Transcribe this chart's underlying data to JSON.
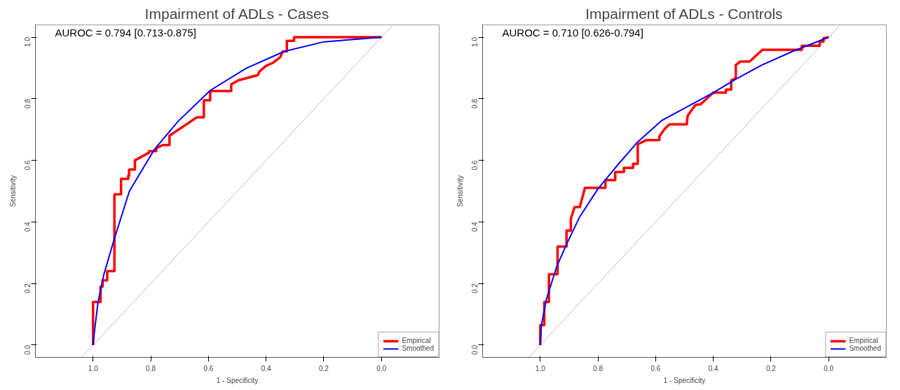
{
  "chart_data": [
    {
      "type": "line",
      "title": "Impairment of ADLs - Cases",
      "xlabel": "1 - Specificity",
      "ylabel": "Sensitivity",
      "annotations": [
        "AUROC = 0.794 [0.713-0.875]"
      ],
      "xlim": [
        1.2,
        -0.2
      ],
      "ylim": [
        -0.04,
        1.04
      ],
      "xticks": [
        {
          "value": 1.0,
          "label": "1.0"
        },
        {
          "value": 0.8,
          "label": "0.8"
        },
        {
          "value": 0.6,
          "label": "0.6"
        },
        {
          "value": 0.4,
          "label": "0.4"
        },
        {
          "value": 0.2,
          "label": "0.2"
        },
        {
          "value": 0.0,
          "label": "0.0"
        }
      ],
      "yticks": [
        {
          "value": 0.0,
          "label": "0.0"
        },
        {
          "value": 0.2,
          "label": "0.2"
        },
        {
          "value": 0.4,
          "label": "0.4"
        },
        {
          "value": 0.6,
          "label": "0.6"
        },
        {
          "value": 0.8,
          "label": "0.8"
        },
        {
          "value": 1.0,
          "label": "1.0"
        }
      ],
      "grid": false,
      "legend": "bottom right",
      "marker": "none",
      "line_style": "solid",
      "series": [
        {
          "color": "#bebebe",
          "x": [
            1.04,
            -0.04
          ],
          "values": [
            -0.04,
            1.04
          ]
        },
        {
          "name": "Empirical",
          "color": "#ff0000",
          "x": [
            1.0,
            1.0,
            0.974,
            0.974,
            0.967,
            0.967,
            0.951,
            0.951,
            0.926,
            0.926,
            0.903,
            0.903,
            0.878,
            0.878,
            0.875,
            0.875,
            0.855,
            0.855,
            0.806,
            0.806,
            0.781,
            0.781,
            0.757,
            0.735,
            0.735,
            0.64,
            0.616,
            0.616,
            0.594,
            0.594,
            0.521,
            0.521,
            0.496,
            0.428,
            0.424,
            0.4,
            0.376,
            0.351,
            0.342,
            0.328,
            0.328,
            0.303,
            0.303,
            0.0
          ],
          "values": [
            0.0,
            0.14,
            0.14,
            0.19,
            0.19,
            0.21,
            0.21,
            0.24,
            0.24,
            0.49,
            0.49,
            0.54,
            0.54,
            0.55,
            0.55,
            0.57,
            0.57,
            0.6,
            0.625,
            0.63,
            0.63,
            0.64,
            0.65,
            0.65,
            0.68,
            0.74,
            0.74,
            0.795,
            0.795,
            0.825,
            0.825,
            0.847,
            0.86,
            0.877,
            0.888,
            0.907,
            0.917,
            0.935,
            0.954,
            0.954,
            0.988,
            0.988,
            1.0,
            1.0
          ]
        },
        {
          "name": "Smoothed",
          "color": "#0000ff",
          "x": [
            1.0,
            0.995,
            0.983,
            0.963,
            0.926,
            0.874,
            0.787,
            0.705,
            0.594,
            0.469,
            0.337,
            0.2,
            0.0
          ],
          "values": [
            0.0,
            0.047,
            0.138,
            0.228,
            0.346,
            0.5,
            0.636,
            0.727,
            0.827,
            0.899,
            0.954,
            0.985,
            1.0
          ]
        }
      ]
    },
    {
      "type": "line",
      "title": "Impairment of ADLs - Controls",
      "xlabel": "1 - Specificity",
      "ylabel": "Sensitivity",
      "annotations": [
        "AUROC = 0.710 [0.626-0.794]"
      ],
      "xlim": [
        1.2,
        -0.2
      ],
      "ylim": [
        -0.04,
        1.04
      ],
      "xticks": [
        {
          "value": 1.0,
          "label": "1.0"
        },
        {
          "value": 0.8,
          "label": "0.8"
        },
        {
          "value": 0.6,
          "label": "0.6"
        },
        {
          "value": 0.4,
          "label": "0.4"
        },
        {
          "value": 0.2,
          "label": "0.2"
        },
        {
          "value": 0.0,
          "label": "0.0"
        }
      ],
      "yticks": [
        {
          "value": 0.0,
          "label": "0.0"
        },
        {
          "value": 0.2,
          "label": "0.2"
        },
        {
          "value": 0.4,
          "label": "0.4"
        },
        {
          "value": 0.6,
          "label": "0.6"
        },
        {
          "value": 0.8,
          "label": "0.8"
        },
        {
          "value": 1.0,
          "label": "1.0"
        }
      ],
      "grid": false,
      "legend": "bottom right",
      "marker": "none",
      "line_style": "solid",
      "series": [
        {
          "color": "#bebebe",
          "x": [
            1.04,
            -0.04
          ],
          "values": [
            -0.04,
            1.04
          ]
        },
        {
          "name": "Empirical",
          "color": "#ff0000",
          "x": [
            1.0,
            1.0,
            0.986,
            0.986,
            0.97,
            0.97,
            0.94,
            0.94,
            0.909,
            0.909,
            0.894,
            0.894,
            0.881,
            0.863,
            0.845,
            0.774,
            0.774,
            0.774,
            0.74,
            0.74,
            0.71,
            0.71,
            0.678,
            0.678,
            0.662,
            0.662,
            0.632,
            0.587,
            0.587,
            0.568,
            0.552,
            0.492,
            0.489,
            0.462,
            0.444,
            0.4,
            0.356,
            0.356,
            0.338,
            0.338,
            0.324,
            0.322,
            0.322,
            0.306,
            0.274,
            0.23,
            0.093,
            0.093,
            0.031,
            0.031,
            0.018,
            0.018,
            0.0
          ],
          "values": [
            0.0,
            0.065,
            0.065,
            0.14,
            0.14,
            0.23,
            0.23,
            0.32,
            0.32,
            0.372,
            0.372,
            0.41,
            0.448,
            0.448,
            0.511,
            0.511,
            0.52,
            0.536,
            0.536,
            0.562,
            0.562,
            0.576,
            0.576,
            0.589,
            0.589,
            0.652,
            0.666,
            0.666,
            0.678,
            0.703,
            0.717,
            0.717,
            0.745,
            0.78,
            0.782,
            0.82,
            0.82,
            0.83,
            0.83,
            0.86,
            0.866,
            0.866,
            0.91,
            0.921,
            0.921,
            0.959,
            0.959,
            0.972,
            0.972,
            0.986,
            0.986,
            0.997,
            1.0
          ]
        },
        {
          "name": "Smoothed",
          "color": "#0000ff",
          "x": [
            1.0,
            0.996,
            0.979,
            0.943,
            0.909,
            0.863,
            0.801,
            0.738,
            0.663,
            0.578,
            0.4,
            0.32,
            0.231,
            0.125,
            0.0
          ],
          "values": [
            0.0,
            0.065,
            0.148,
            0.255,
            0.327,
            0.417,
            0.506,
            0.578,
            0.659,
            0.73,
            0.82,
            0.865,
            0.91,
            0.954,
            1.0
          ]
        }
      ]
    }
  ]
}
